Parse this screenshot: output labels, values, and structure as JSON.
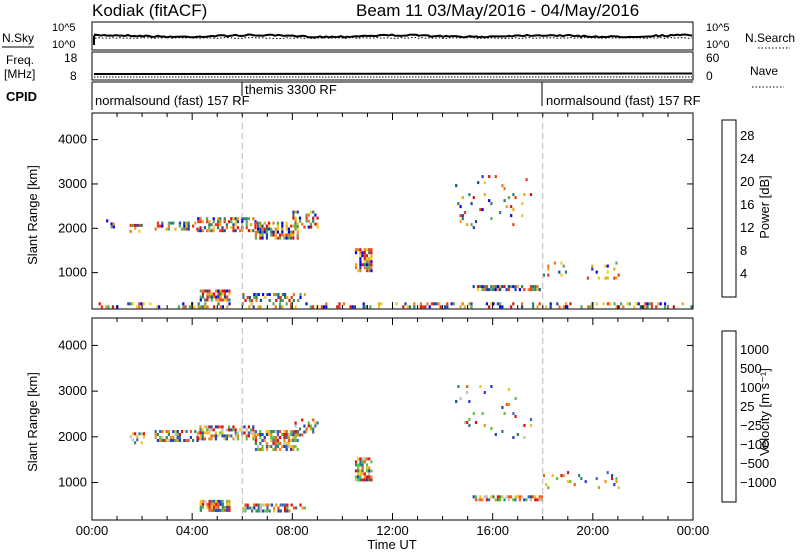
{
  "header": {
    "station": "Kodiak (fitACF)",
    "beam_dates": "Beam 11 03/May/2016 - 04/May/2016"
  },
  "top_panels": {
    "nsky_label": "N.Sky",
    "nsearch_label": "N.Search",
    "nsky_ticks": [
      "10^5",
      "10^0"
    ],
    "nsearch_ticks": [
      "10^5",
      "10^0"
    ],
    "freq_label": "Freq.",
    "freq_unit": "[MHz]",
    "freq_ticks": [
      "18",
      "8"
    ],
    "nave_label": "Nave",
    "nave_ticks": [
      "60",
      "0"
    ],
    "cpid_label": "CPID",
    "cpid_segments": [
      {
        "text": "normalsound (fast) 157 RF",
        "start_hour": 0
      },
      {
        "text": "themis 3300 RF",
        "start_hour": 6
      },
      {
        "text": "normalsound (fast) 157 RF",
        "start_hour": 18
      }
    ]
  },
  "chart_data": [
    {
      "type": "heatmap",
      "name": "power-panel",
      "ylabel": "Slant Range [km]",
      "xlabel": "",
      "y_ticks": [
        1000,
        2000,
        3000,
        4000
      ],
      "ylim": [
        180,
        4600
      ],
      "x_ticks": [],
      "xlim_hours": [
        0,
        24
      ],
      "colorbar_label": "Power [dB]",
      "colorbar_ticks": [
        4,
        8,
        12,
        16,
        20,
        24,
        28
      ],
      "colorbar_colors": [
        "#0a00f0",
        "#1e46a0",
        "#2e7e68",
        "#5aa85a",
        "#e8d020",
        "#f2a418",
        "#ee7818",
        "#e83a1a",
        "#dd1010"
      ],
      "vlines_hours": [
        6,
        18
      ],
      "echo_regions": [
        {
          "t": [
            0.3,
            0.9
          ],
          "r": [
            2050,
            2200
          ],
          "density": 0.25
        },
        {
          "t": [
            1.5,
            2.2
          ],
          "r": [
            1900,
            2100
          ],
          "density": 0.4
        },
        {
          "t": [
            2.5,
            4.2
          ],
          "r": [
            1950,
            2150
          ],
          "density": 0.55
        },
        {
          "t": [
            4.2,
            6.5
          ],
          "r": [
            1950,
            2250
          ],
          "density": 0.6
        },
        {
          "t": [
            6.5,
            8.2
          ],
          "r": [
            1750,
            2150
          ],
          "density": 0.65
        },
        {
          "t": [
            8.0,
            9.0
          ],
          "r": [
            2050,
            2400
          ],
          "density": 0.4
        },
        {
          "t": [
            10.5,
            11.2
          ],
          "r": [
            1050,
            1550
          ],
          "density": 0.7
        },
        {
          "t": [
            4.3,
            5.5
          ],
          "r": [
            380,
            620
          ],
          "density": 0.8
        },
        {
          "t": [
            6.0,
            8.5
          ],
          "r": [
            380,
            540
          ],
          "density": 0.55
        },
        {
          "t": [
            15.2,
            18.0
          ],
          "r": [
            600,
            720
          ],
          "density": 0.7
        },
        {
          "t": [
            18.0,
            21.0
          ],
          "r": [
            900,
            1250
          ],
          "density": 0.15
        },
        {
          "t": [
            14.5,
            17.5
          ],
          "r": [
            2000,
            3200
          ],
          "density": 0.08
        },
        {
          "t": [
            0.0,
            24.0
          ],
          "r": [
            200,
            330
          ],
          "density": 0.3
        }
      ]
    },
    {
      "type": "heatmap",
      "name": "velocity-panel",
      "ylabel": "Slant Range [km]",
      "xlabel": "Time UT",
      "y_ticks": [
        1000,
        2000,
        3000,
        4000
      ],
      "ylim": [
        180,
        4600
      ],
      "x_ticks": [
        "00:00",
        "04:00",
        "08:00",
        "12:00",
        "16:00",
        "20:00",
        "00:00"
      ],
      "xlim_hours": [
        0,
        24
      ],
      "colorbar_label": "Velocity [m s⁻¹]",
      "colorbar_ticks": [
        "1000",
        "500",
        "100",
        "25",
        "−25",
        "−100",
        "−500",
        "−1000"
      ],
      "colorbar_colors": [
        "#2040c0",
        "#3a6ab0",
        "#2e8a5a",
        "#58c83a",
        "#c0c0c0",
        "#f2c020",
        "#f09018",
        "#ee5a18",
        "#e01010"
      ],
      "vlines_hours": [
        6,
        18
      ],
      "echo_regions": [
        {
          "t": [
            1.5,
            2.2
          ],
          "r": [
            1900,
            2100
          ],
          "density": 0.4
        },
        {
          "t": [
            2.5,
            4.2
          ],
          "r": [
            1950,
            2150
          ],
          "density": 0.55
        },
        {
          "t": [
            4.2,
            6.5
          ],
          "r": [
            1950,
            2250
          ],
          "density": 0.6
        },
        {
          "t": [
            6.5,
            8.2
          ],
          "r": [
            1750,
            2150
          ],
          "density": 0.65
        },
        {
          "t": [
            8.0,
            9.0
          ],
          "r": [
            2050,
            2400
          ],
          "density": 0.4
        },
        {
          "t": [
            10.5,
            11.2
          ],
          "r": [
            1050,
            1550
          ],
          "density": 0.7
        },
        {
          "t": [
            4.3,
            5.5
          ],
          "r": [
            380,
            620
          ],
          "density": 0.8
        },
        {
          "t": [
            6.0,
            8.5
          ],
          "r": [
            380,
            540
          ],
          "density": 0.55
        },
        {
          "t": [
            15.2,
            18.0
          ],
          "r": [
            600,
            720
          ],
          "density": 0.7
        },
        {
          "t": [
            18.0,
            21.0
          ],
          "r": [
            900,
            1250
          ],
          "density": 0.12
        },
        {
          "t": [
            14.5,
            17.5
          ],
          "r": [
            2000,
            3200
          ],
          "density": 0.06
        }
      ]
    }
  ]
}
